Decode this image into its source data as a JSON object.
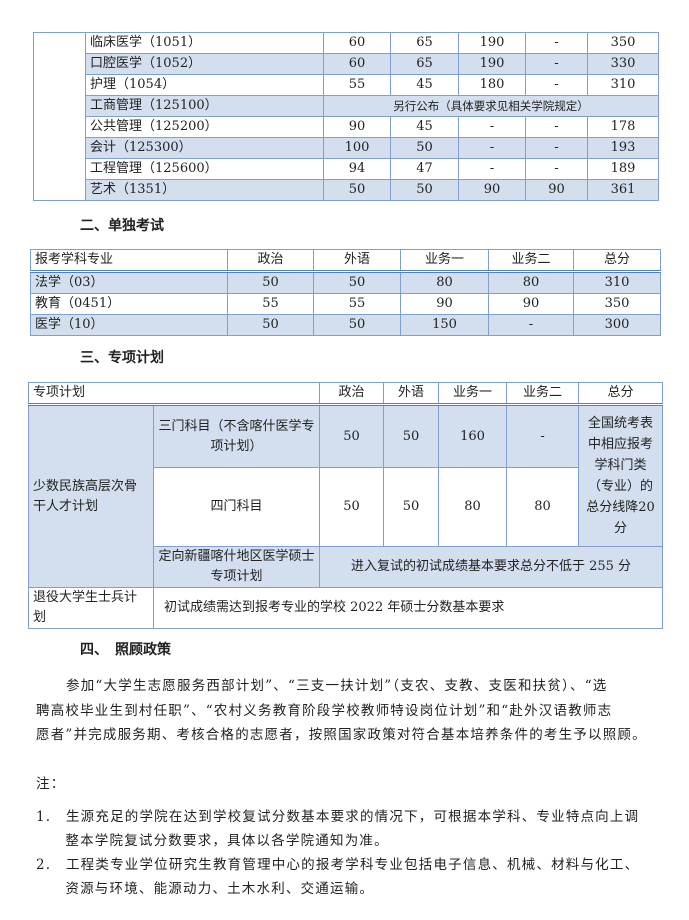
{
  "table1": {
    "rows": [
      {
        "name": "临床医学（1051）",
        "politics": "60",
        "language": "65",
        "course1": "190",
        "course2": "-",
        "total": "350"
      },
      {
        "name": "口腔医学（1052）",
        "politics": "60",
        "language": "65",
        "course1": "190",
        "course2": "-",
        "total": "330"
      },
      {
        "name": "护理（1054）",
        "politics": "55",
        "language": "45",
        "course1": "180",
        "course2": "-",
        "total": "310"
      },
      {
        "name": "工商管理（125100）",
        "note": "另行公布（具体要求见相关学院规定）"
      },
      {
        "name": "公共管理（125200）",
        "politics": "90",
        "language": "45",
        "course1": "-",
        "course2": "-",
        "total": "178"
      },
      {
        "name": "会计（125300）",
        "politics": "100",
        "language": "50",
        "course1": "-",
        "course2": "-",
        "total": "193"
      },
      {
        "name": "工程管理（125600）",
        "politics": "94",
        "language": "47",
        "course1": "-",
        "course2": "-",
        "total": "189"
      },
      {
        "name": "艺术（1351）",
        "politics": "50",
        "language": "50",
        "course1": "90",
        "course2": "90",
        "total": "361"
      }
    ]
  },
  "section2": {
    "title": "二、单独考试"
  },
  "table2": {
    "headers": [
      "报考学科专业",
      "政治",
      "外语",
      "业务一",
      "业务二",
      "总分"
    ],
    "rows": [
      [
        "法学（03）",
        "50",
        "50",
        "80",
        "80",
        "310"
      ],
      [
        "教育（0451）",
        "55",
        "55",
        "90",
        "90",
        "350"
      ],
      [
        "医学（10）",
        "50",
        "50",
        "150",
        "-",
        "300"
      ]
    ]
  },
  "section3": {
    "title": "三、专项计划"
  },
  "table3": {
    "headers": [
      "专项计划",
      "政治",
      "外语",
      "业务一",
      "业务二",
      "总分"
    ],
    "minority": "少数民族高层次骨干人才计划",
    "three": {
      "label": "三门科目（不含喀什医学专项计划）",
      "values": [
        "50",
        "50",
        "160",
        "-"
      ]
    },
    "four": {
      "label": "四门科目",
      "values": [
        "50",
        "50",
        "80",
        "80"
      ]
    },
    "total_note": "全国统考表中相应报考学科门类（专业）的总分线降20分",
    "kashgar": {
      "label": "定向新疆喀什地区医学硕士专项计划",
      "note": "进入复试的初试成绩基本要求总分不低于 255 分"
    },
    "veteran": {
      "label": "退役大学生士兵计划",
      "note": "初试成绩需达到报考专业的学校 2022 年硕士分数基本要求"
    }
  },
  "section4": {
    "title": "四、　照顾政策",
    "lines": [
      "参加“大学生志愿服务西部计划”、“三支一扶计划”（支农、支教、支医和扶贫）、“选",
      "聘高校毕业生到村任职”、“农村义务教育阶段学校教师特设岗位计划”和“赴外汉语教师志",
      "愿者”并完成服务期、考核合格的志愿者，按照国家政策对符合基本培养条件的考生予以照顾。"
    ]
  },
  "notes": {
    "title": "注：",
    "lines": [
      "1.　生源充足的学院在达到学校复试分数基本要求的情况下，可根据本学科、专业特点向上调",
      "　　整本学院复试分数要求，具体以各学院通知为准。",
      "2.　工程类专业学位研究生教育管理中心的报考学科专业包括电子信息、机械、材料与化工、",
      "　　资源与环境、能源动力、土木水利、交通运输。"
    ]
  }
}
